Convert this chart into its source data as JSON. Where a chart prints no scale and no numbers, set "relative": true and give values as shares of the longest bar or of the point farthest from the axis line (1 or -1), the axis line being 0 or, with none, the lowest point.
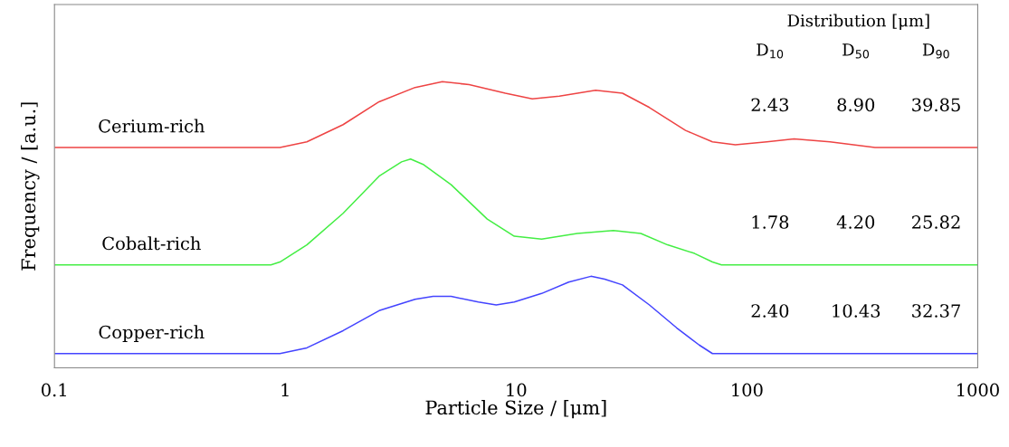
{
  "chart_data": {
    "type": "line",
    "relative": true,
    "log": "x",
    "xlim": [
      0.1,
      1000
    ],
    "xticks": [
      0.1,
      1,
      10,
      100,
      1000
    ],
    "tick_labels": "x",
    "grid": false,
    "legend": false,
    "marker": "none",
    "line_style": "solid",
    "xlabel": "Particle Size / [μm]",
    "ylabel": "Frequency / [a.u.]",
    "annotations": [
      "Distribution [μm]",
      "D$_{10}$",
      "D$_{50}$",
      "D$_{90}$",
      "2.43",
      "8.90",
      "39.85",
      "1.78",
      "4.20",
      "25.82",
      "2.40",
      "10.43",
      "32.37"
    ],
    "series": [
      {
        "name": "Cerium-rich",
        "color": "#ee4444",
        "x": [
          0.1,
          0.866,
          0.948,
          1.24,
          1.78,
          2.55,
          3.65,
          4.79,
          6.26,
          8.98,
          11.75,
          15.4,
          22.1,
          28.9,
          37.8,
          54.2,
          70.9,
          89.1,
          122,
          160,
          229,
          359,
          469,
          1000
        ],
        "values": [
          0.77,
          0.77,
          0.77,
          0.79,
          0.85,
          0.93,
          0.98,
          1.0,
          0.99,
          0.96,
          0.94,
          0.95,
          0.97,
          0.96,
          0.91,
          0.83,
          0.79,
          0.78,
          0.79,
          0.8,
          0.79,
          0.77,
          0.77,
          0.77
        ]
      },
      {
        "name": "Cobalt-rich",
        "color": "#44ee44",
        "x": [
          0.1,
          0.866,
          0.948,
          1.24,
          1.78,
          2.55,
          3.19,
          3.49,
          3.98,
          5.23,
          7.5,
          9.82,
          12.9,
          18.4,
          26.4,
          34.7,
          45.3,
          59.3,
          70.9,
          77.6,
          1000
        ],
        "values": [
          0.36,
          0.36,
          0.37,
          0.43,
          0.54,
          0.67,
          0.72,
          0.73,
          0.71,
          0.64,
          0.52,
          0.46,
          0.45,
          0.47,
          0.48,
          0.47,
          0.43,
          0.4,
          0.37,
          0.36,
          0.36
        ]
      },
      {
        "name": "Copper-rich",
        "color": "#4444ff",
        "x": [
          0.1,
          0.866,
          0.948,
          1.24,
          1.78,
          2.55,
          3.65,
          4.37,
          5.23,
          6.86,
          8.2,
          9.82,
          12.9,
          16.9,
          21.1,
          24.2,
          28.9,
          37.8,
          49.6,
          62.1,
          70.9,
          77.6,
          1000
        ],
        "values": [
          0.05,
          0.05,
          0.05,
          0.07,
          0.13,
          0.2,
          0.24,
          0.25,
          0.25,
          0.23,
          0.22,
          0.23,
          0.26,
          0.3,
          0.32,
          0.31,
          0.29,
          0.22,
          0.14,
          0.08,
          0.05,
          0.05,
          0.05
        ]
      }
    ]
  }
}
